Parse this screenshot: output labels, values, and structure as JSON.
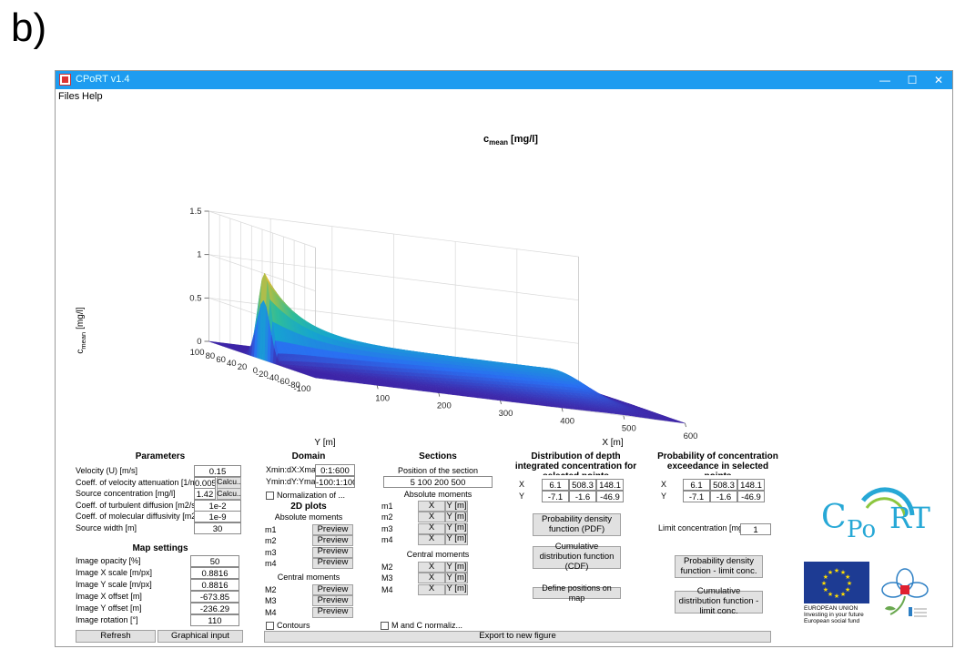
{
  "figure_label": "b)",
  "window": {
    "title": "CPoRT v1.4",
    "minimize": "—",
    "maximize": "☐",
    "close": "✕"
  },
  "menu": [
    "Files",
    "Help"
  ],
  "chart_data": {
    "type": "surface",
    "title": "c",
    "title_sub": "mean",
    "title_unit": "[mg/l]",
    "xlabel": "X [m]",
    "ylabel": "Y [m]",
    "zlabel_main": "c",
    "zlabel_sub": "mean",
    "zlabel_unit": "[mg/l]",
    "x_ticks": [
      "100",
      "200",
      "300",
      "400",
      "500",
      "600"
    ],
    "y_ticks": [
      "100",
      "80",
      "60",
      "40",
      "20",
      "0",
      "-20",
      "-40",
      "-60",
      "-80",
      "-100"
    ],
    "z_ticks": [
      "0",
      "0.5",
      "1",
      "1.5"
    ],
    "xlim": [
      0,
      600
    ],
    "ylim": [
      -100,
      100
    ],
    "zlim": [
      0,
      1.5
    ],
    "peak": {
      "x": 0,
      "y": 0,
      "z": 1.05
    },
    "plateau_z": 0.3,
    "colormap": [
      "#3e26a8",
      "#2a6ff2",
      "#16a5cf",
      "#2fbd9a",
      "#8ebf56",
      "#e0b93a",
      "#f9fa14"
    ]
  },
  "parameters": {
    "title": "Parameters",
    "rows": [
      {
        "label": "Velocity (U) [m/s]",
        "value": "0.15"
      },
      {
        "label": "Coeff. of velocity attenuation [1/m]",
        "value": "0.005",
        "button": "Calcu.."
      },
      {
        "label": "Source concentration [mg/l]",
        "value": "1.42",
        "button": "Calcu.."
      },
      {
        "label": "Coeff. of turbulent diffusion [m2/s]",
        "value": "1e-2"
      },
      {
        "label": "Coeff. of molecular diffusivity [m2/s]",
        "value": "1e-9"
      },
      {
        "label": "Source width [m]",
        "value": "30"
      }
    ]
  },
  "map_settings": {
    "title": "Map settings",
    "rows": [
      {
        "label": "Image opacity [%]",
        "value": "50"
      },
      {
        "label": "Image X scale [m/px]",
        "value": "0.8816"
      },
      {
        "label": "Image Y scale [m/px]",
        "value": "0.8816"
      },
      {
        "label": "Image X offset [m]",
        "value": "-673.85"
      },
      {
        "label": "Image Y offset [m]",
        "value": "-236.29"
      },
      {
        "label": "Image rotation [°]",
        "value": "110"
      }
    ],
    "refresh": "Refresh",
    "graphical_input": "Graphical input"
  },
  "domain": {
    "title": "Domain",
    "xrange_label": "Xmin:dX:Xmax",
    "xrange_value": "0:1:600",
    "yrange_label": "Ymin:dY:Ymax",
    "yrange_value": "-100:1:100",
    "normalization": "Normalization of ...",
    "plots_title": "2D plots",
    "absolute_title": "Absolute moments",
    "absolute": [
      "m1",
      "m2",
      "m3",
      "m4"
    ],
    "central_title": "Central moments",
    "central": [
      "M2",
      "M3",
      "M4"
    ],
    "preview": "Preview",
    "contours": "Contours"
  },
  "sections": {
    "title": "Sections",
    "position_label": "Position of the section",
    "position_value": "5 100 200 500",
    "absolute_title": "Absolute moments",
    "absolute": [
      "m1",
      "m2",
      "m3",
      "m4"
    ],
    "central_title": "Central moments",
    "central": [
      "M2",
      "M3",
      "M4"
    ],
    "x_btn": "X",
    "y_btn": "Y [m]",
    "mc_normaliz": "M and C normaliz...",
    "export": "Export to new figure"
  },
  "distribution": {
    "title": "Distribution of depth integrated concentration for selected points",
    "x_label": "X",
    "y_label": "Y",
    "x_values": [
      "6.1",
      "508.3",
      "148.1"
    ],
    "y_values": [
      "-7.1",
      "-1.6",
      "-46.9"
    ],
    "pdf": "Probability density function (PDF)",
    "cdf": "Cumulative distribution function (CDF)",
    "define": "Define positions on map"
  },
  "exceedance": {
    "title": "Probability of concentration exceedance in selected points",
    "x_label": "X",
    "y_label": "Y",
    "x_values": [
      "6.1",
      "508.3",
      "148.1"
    ],
    "y_values": [
      "-7.1",
      "-1.6",
      "-46.9"
    ],
    "limit_label": "Limit concentration [mg/l]",
    "limit_value": "1",
    "pdf_limit": "Probability density function - limit conc.",
    "cdf_limit": "Cumulative distribution function - limit conc."
  },
  "logos": {
    "cport_c": "C",
    "cport_po": "Po",
    "cport_rt": "RT",
    "eu_line1": "EUROPEAN UNION",
    "eu_line2": "Investing in your future",
    "eu_line3": "European social fund"
  }
}
